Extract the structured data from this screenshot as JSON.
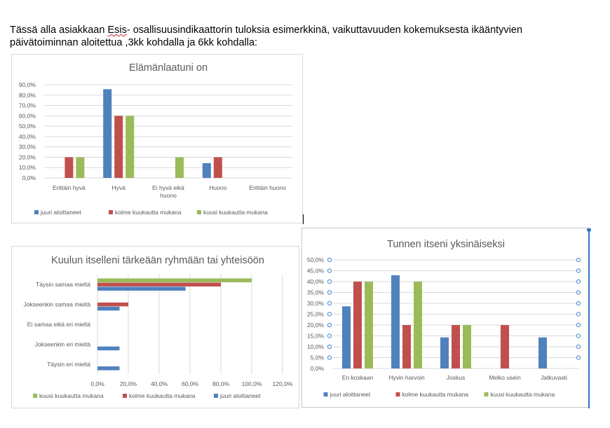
{
  "intro": {
    "line1_before": "Tässä alla asiakkaan ",
    "esis": "Esis",
    "line1_after": "- osallisuusindikaattorin tuloksia esimerkkinä, vaikuttavuuden kokemuksesta ikääntyvien",
    "line2": "päivätoiminnan aloitettua ,3kk kohdalla ja 6kk kohdalla:"
  },
  "colors": {
    "blue": "#4f81bd",
    "red": "#c0504d",
    "green": "#9bbb59"
  },
  "chart_data": [
    {
      "type": "bar",
      "title": "Elämänlaatuni on",
      "categories": [
        "Erittäin hyvä",
        "Hyvä",
        "Ei hyvä eikä huono",
        "Huono",
        "Erittäin huono"
      ],
      "ylim": [
        0,
        90
      ],
      "yticks": [
        "0,0%",
        "10,0%",
        "20,0%",
        "30,0%",
        "40,0%",
        "50,0%",
        "60,0%",
        "70,0%",
        "80,0%",
        "90,0%"
      ],
      "grid": true,
      "legend_position": "bottom",
      "series": [
        {
          "name": "juuri aloittaneet",
          "color": "#4f81bd",
          "values": [
            0,
            85.7,
            0,
            14.3,
            0
          ]
        },
        {
          "name": "kolme kuukautta mukana",
          "color": "#c0504d",
          "values": [
            20,
            60,
            0,
            20,
            0
          ]
        },
        {
          "name": "kuusi kuukautta mukana",
          "color": "#9bbb59",
          "values": [
            20,
            60,
            20,
            0,
            0
          ]
        }
      ]
    },
    {
      "type": "bar",
      "orientation": "horizontal",
      "title": "Kuulun itselleni tärkeään ryhmään tai yhteisöön",
      "categories": [
        "Täysin samaa mieltä",
        "Jokseenkin samaa mieltä",
        "Ei samaa eikä eri mieltä",
        "Jokseenkin eri mieltä",
        "Täysin eri mieltä"
      ],
      "xlim": [
        0,
        120
      ],
      "xticks": [
        "0,0%",
        "20,0%",
        "40,0%",
        "60,0%",
        "80,0%",
        "100,0%",
        "120,0%"
      ],
      "grid": true,
      "legend_position": "bottom",
      "series": [
        {
          "name": "kuusi kuukautta mukana",
          "color": "#9bbb59",
          "values": [
            100,
            0,
            0,
            0,
            0
          ]
        },
        {
          "name": "kolme kuukautta mukana",
          "color": "#c0504d",
          "values": [
            80,
            20,
            0,
            0,
            0
          ]
        },
        {
          "name": "juuri aloittaneet",
          "color": "#4f81bd",
          "values": [
            57.1,
            14.3,
            0,
            14.3,
            14.3
          ]
        }
      ]
    },
    {
      "type": "bar",
      "title": "Tunnen itseni yksinäiseksi",
      "categories": [
        "En koskaan",
        "Hyvin harvoin",
        "Joskus",
        "Melko usein",
        "Jatkuvasti"
      ],
      "ylim": [
        0,
        50
      ],
      "yticks": [
        "0,0%",
        "5,0%",
        "10,0%",
        "15,0%",
        "20,0%",
        "25,0%",
        "30,0%",
        "35,0%",
        "40,0%",
        "45,0%",
        "50,0%"
      ],
      "grid": true,
      "legend_position": "bottom",
      "series": [
        {
          "name": "juuri aloittaneet",
          "color": "#4f81bd",
          "values": [
            28.6,
            42.9,
            14.3,
            0,
            14.3
          ]
        },
        {
          "name": "kolme kuukautta mukana",
          "color": "#c0504d",
          "values": [
            40,
            20,
            20,
            20,
            0
          ]
        },
        {
          "name": "kuusi kuukautta mukana",
          "color": "#9bbb59",
          "values": [
            40,
            40,
            20,
            0,
            0
          ]
        }
      ]
    }
  ]
}
